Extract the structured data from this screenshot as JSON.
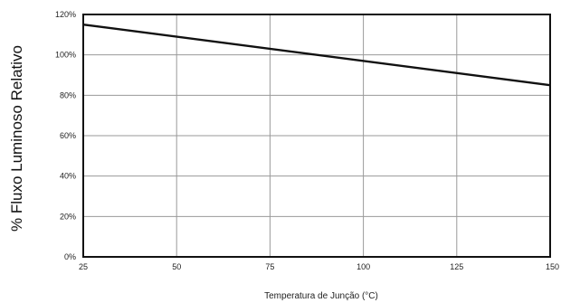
{
  "chart_data": {
    "type": "line",
    "title": "",
    "xlabel": "Temperatura de Junção (°C)",
    "ylabel": "% Fluxo Luminoso Relativo",
    "xlim": [
      25,
      150
    ],
    "ylim": [
      0,
      120
    ],
    "x_ticks": [
      "25",
      "50",
      "75",
      "100",
      "125",
      "150"
    ],
    "y_ticks": [
      "0%",
      "20%",
      "40%",
      "60%",
      "80%",
      "100%",
      "120%"
    ],
    "grid": true,
    "series": [
      {
        "x": [
          25,
          150
        ],
        "y": [
          115,
          85
        ],
        "color": "#111111"
      }
    ]
  }
}
